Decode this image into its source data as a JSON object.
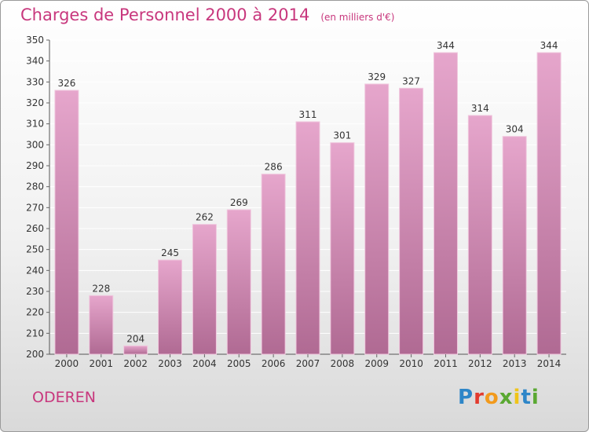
{
  "title": "Charges de Personnel 2000 à 2014",
  "subtitle": "(en milliers d'€)",
  "city": "ODEREN",
  "logo": {
    "text": "Proxiti",
    "letters": [
      {
        "ch": "P",
        "color": "#2e86c8"
      },
      {
        "ch": "r",
        "color": "#e23b2e"
      },
      {
        "ch": "o",
        "color": "#f29a1c"
      },
      {
        "ch": "x",
        "color": "#5aa832"
      },
      {
        "ch": "i",
        "color": "#f0c419"
      },
      {
        "ch": "t",
        "color": "#2e86c8"
      },
      {
        "ch": "i",
        "color": "#5aa832"
      }
    ]
  },
  "colors": {
    "accent": "#c8377d",
    "bar_top": "#e6a6cc",
    "bar_bottom": "#b06a93",
    "bar_edge": "#f0c8de"
  },
  "chart_data": {
    "type": "bar",
    "categories": [
      "2000",
      "2001",
      "2002",
      "2003",
      "2004",
      "2005",
      "2006",
      "2007",
      "2008",
      "2009",
      "2010",
      "2011",
      "2012",
      "2013",
      "2014"
    ],
    "values": [
      326,
      228,
      204,
      245,
      262,
      269,
      286,
      311,
      301,
      329,
      327,
      344,
      314,
      304,
      344
    ],
    "ylim": [
      200,
      350
    ],
    "yticks": [
      200,
      210,
      220,
      230,
      240,
      250,
      260,
      270,
      280,
      290,
      300,
      310,
      320,
      330,
      340,
      350
    ],
    "grid": true,
    "legend": "none"
  }
}
